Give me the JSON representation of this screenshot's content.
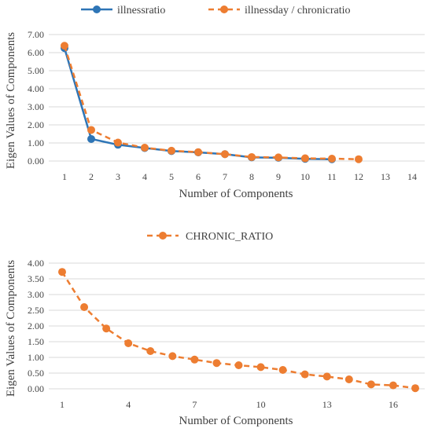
{
  "colors": {
    "blue": "#2e75b6",
    "orange": "#ed7d31",
    "grid": "#d9d9d9"
  },
  "chart_data": [
    {
      "type": "line",
      "xlabel": "Number of Components",
      "ylabel": "Eigen Values of Components",
      "x_ticks": [
        "1",
        "2",
        "3",
        "4",
        "5",
        "6",
        "7",
        "8",
        "9",
        "10",
        "11",
        "12",
        "13",
        "14"
      ],
      "y_ticks": [
        "0.00",
        "1.00",
        "2.00",
        "3.00",
        "4.00",
        "5.00",
        "6.00",
        "7.00"
      ],
      "ylim": [
        0,
        7
      ],
      "xlim": [
        1,
        14
      ],
      "grid": true,
      "legend_position": "top",
      "series": [
        {
          "name": "illnessratio",
          "style": "solid",
          "color": "#2e75b6",
          "x": [
            1,
            2,
            3,
            4,
            5,
            6,
            7,
            8,
            9,
            10,
            11
          ],
          "values": [
            6.25,
            1.22,
            0.9,
            0.72,
            0.55,
            0.48,
            0.38,
            0.2,
            0.18,
            0.12,
            0.1
          ]
        },
        {
          "name": "illnessday / chronicratio",
          "style": "dashed",
          "color": "#ed7d31",
          "x": [
            1,
            2,
            3,
            4,
            5,
            6,
            7,
            8,
            9,
            10,
            11,
            12
          ],
          "values": [
            6.38,
            1.72,
            1.02,
            0.74,
            0.57,
            0.49,
            0.38,
            0.22,
            0.2,
            0.15,
            0.13,
            0.1
          ]
        }
      ]
    },
    {
      "type": "line",
      "xlabel": "Number of Components",
      "ylabel": "Eigen Values of Components",
      "x_ticks": [
        "1",
        "4",
        "7",
        "10",
        "13",
        "16"
      ],
      "y_ticks": [
        "0.00",
        "0.50",
        "1.00",
        "1.50",
        "2.00",
        "2.50",
        "3.00",
        "3.50",
        "4.00"
      ],
      "ylim": [
        0,
        4
      ],
      "xlim": [
        1,
        17
      ],
      "grid": true,
      "legend_position": "top",
      "series": [
        {
          "name": "CHRONIC_RATIO",
          "style": "dashed",
          "color": "#ed7d31",
          "x": [
            1,
            2,
            3,
            4,
            5,
            6,
            7,
            8,
            9,
            10,
            11,
            12,
            13,
            14,
            15,
            16,
            17
          ],
          "values": [
            3.72,
            2.6,
            1.92,
            1.45,
            1.2,
            1.04,
            0.93,
            0.82,
            0.75,
            0.69,
            0.6,
            0.46,
            0.39,
            0.3,
            0.14,
            0.11,
            0.02
          ]
        }
      ]
    }
  ]
}
